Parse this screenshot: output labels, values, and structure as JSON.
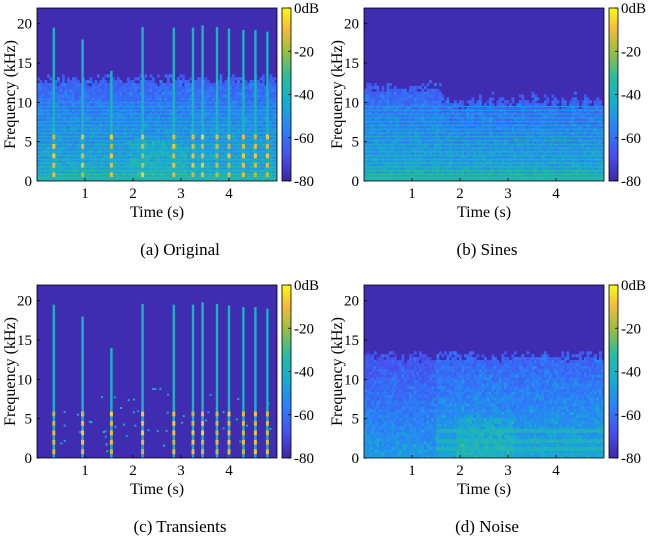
{
  "chart_data": [
    {
      "type": "heatmap",
      "caption": "(a) Original",
      "xlabel": "Time (s)",
      "ylabel": "Frequency (kHz)",
      "xlim": [
        0,
        5
      ],
      "ylim": [
        0,
        22
      ],
      "xticks": [
        "1",
        "2",
        "3",
        "4"
      ],
      "yticks": [
        "0",
        "5",
        "10",
        "15",
        "20"
      ],
      "colorbar": {
        "min": -80,
        "max": 0,
        "ticks": [
          "0dB",
          "-20",
          "-40",
          "-60",
          "-80"
        ]
      },
      "transients_s": [
        0.35,
        0.95,
        1.55,
        2.2,
        2.85,
        3.25,
        3.45,
        3.75,
        4.0,
        4.3,
        4.55,
        4.8
      ]
    },
    {
      "type": "heatmap",
      "caption": "(b) Sines",
      "xlabel": "Time (s)",
      "ylabel": "Frequency (kHz)",
      "xlim": [
        0,
        5
      ],
      "ylim": [
        0,
        22
      ],
      "xticks": [
        "1",
        "2",
        "3",
        "4"
      ],
      "yticks": [
        "0",
        "5",
        "10",
        "15",
        "20"
      ],
      "colorbar": {
        "min": -80,
        "max": 0,
        "ticks": [
          "0dB",
          "-20",
          "-40",
          "-60",
          "-80"
        ]
      },
      "transients_s": []
    },
    {
      "type": "heatmap",
      "caption": "(c) Transients",
      "xlabel": "Time (s)",
      "ylabel": "Frequency (kHz)",
      "xlim": [
        0,
        5
      ],
      "ylim": [
        0,
        22
      ],
      "xticks": [
        "1",
        "2",
        "3",
        "4"
      ],
      "yticks": [
        "0",
        "5",
        "10",
        "15",
        "20"
      ],
      "colorbar": {
        "min": -80,
        "max": 0,
        "ticks": [
          "0dB",
          "-20",
          "-40",
          "-60",
          "-80"
        ]
      },
      "transients_s": [
        0.35,
        0.95,
        1.55,
        2.2,
        2.85,
        3.25,
        3.45,
        3.75,
        4.0,
        4.3,
        4.55,
        4.8
      ]
    },
    {
      "type": "heatmap",
      "caption": "(d) Noise",
      "xlabel": "Time (s)",
      "ylabel": "Frequency (kHz)",
      "xlim": [
        0,
        5
      ],
      "ylim": [
        0,
        22
      ],
      "xticks": [
        "1",
        "2",
        "3",
        "4"
      ],
      "yticks": [
        "0",
        "5",
        "10",
        "15",
        "20"
      ],
      "colorbar": {
        "min": -80,
        "max": 0,
        "ticks": [
          "0dB",
          "-20",
          "-40",
          "-60",
          "-80"
        ]
      },
      "transients_s": []
    }
  ],
  "colormap": "parula",
  "colors": {
    "background": "#3e26a8",
    "high": "#f9fb0e"
  }
}
